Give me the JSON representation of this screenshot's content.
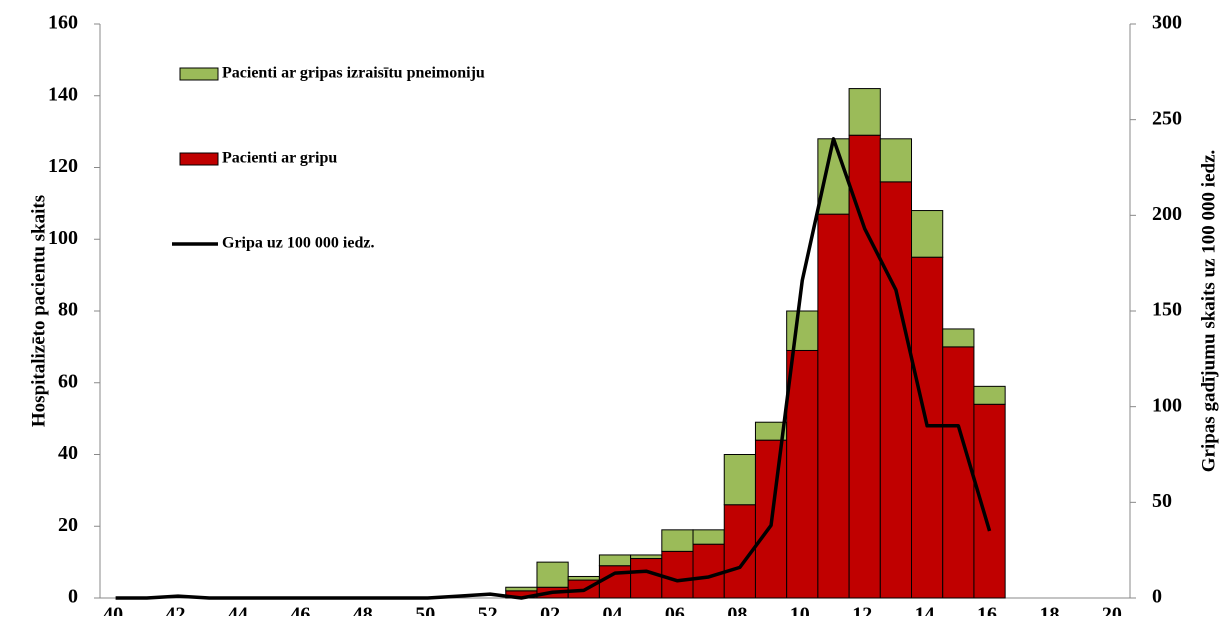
{
  "chart_data": {
    "type": "bar",
    "categories": [
      "40.",
      null,
      "42.",
      null,
      "44.",
      null,
      "46.",
      null,
      "48.",
      null,
      "50.",
      null,
      "52.",
      null,
      "02.",
      null,
      "04.",
      null,
      "06.",
      null,
      "08.",
      null,
      "10.",
      null,
      "12.",
      null,
      "14.",
      null,
      "16.",
      null,
      "18.",
      null,
      "20."
    ],
    "series": [
      {
        "name": "Pacienti ar gripas izraisītu pneimoniju",
        "type": "bar",
        "color": "#9bbb59",
        "values": [
          null,
          null,
          null,
          null,
          null,
          null,
          null,
          null,
          null,
          null,
          null,
          null,
          null,
          1,
          7,
          1,
          3,
          1,
          6,
          4,
          14,
          5,
          11,
          21,
          13,
          12,
          13,
          5,
          5,
          null,
          null,
          null,
          null
        ]
      },
      {
        "name": "Pacienti ar gripu",
        "type": "bar",
        "color": "#c00000",
        "values": [
          null,
          null,
          null,
          null,
          null,
          null,
          null,
          null,
          null,
          null,
          null,
          null,
          null,
          2,
          3,
          5,
          9,
          11,
          13,
          15,
          26,
          44,
          69,
          107,
          129,
          116,
          95,
          70,
          54,
          null,
          null,
          null,
          null
        ]
      },
      {
        "name": "Gripa uz 100 000 iedz.",
        "type": "line",
        "axis": "y2",
        "color": "#000000",
        "values": [
          0,
          0,
          1,
          0,
          0,
          0,
          0,
          0,
          0,
          0,
          0,
          1,
          2,
          0,
          3,
          4,
          13,
          14,
          9,
          11,
          16,
          38,
          166,
          240,
          193,
          161,
          90,
          90,
          35,
          null,
          null,
          null,
          null
        ]
      }
    ],
    "ylabel": "Hospitalizēto pacientu skaits",
    "y2label": "Gripas gadījumu skaits uz 100 000 iedz.",
    "ylim": [
      0,
      160
    ],
    "yticks": [
      0,
      20,
      40,
      60,
      80,
      100,
      120,
      140,
      160
    ],
    "y2lim": [
      0,
      300
    ],
    "y2ticks": [
      0,
      50,
      100,
      150,
      200,
      250,
      300
    ],
    "grid": false,
    "legend": "upper left"
  }
}
